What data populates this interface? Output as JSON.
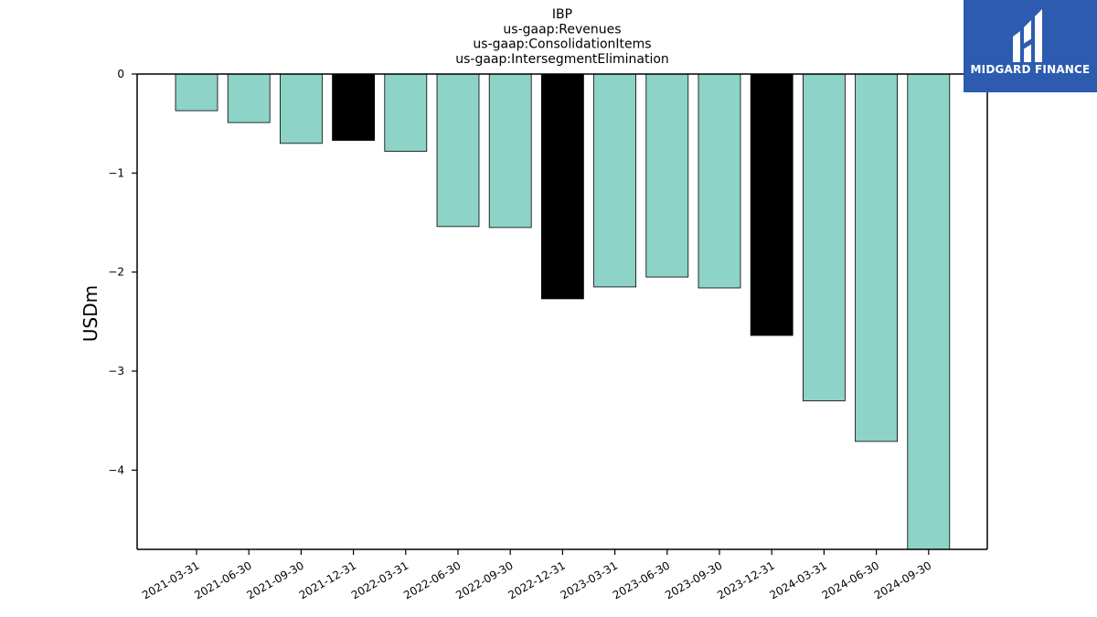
{
  "brand": {
    "name": "MIDGARD FINANCE",
    "background": "#2c5bb0"
  },
  "chart_data": {
    "type": "bar",
    "title_lines": [
      "IBP",
      "us-gaap:Revenues",
      "us-gaap:ConsolidationItems",
      "us-gaap:IntersegmentElimination"
    ],
    "xlabel": "",
    "ylabel": "USDm",
    "ylim": [
      -4.8,
      0
    ],
    "yticks": [
      0,
      -1,
      -2,
      -3,
      -4
    ],
    "ytick_labels": [
      "0",
      "−1",
      "−2",
      "−3",
      "−4"
    ],
    "grid": false,
    "categories": [
      "2021-03-31",
      "2021-06-30",
      "2021-09-30",
      "2021-12-31",
      "2022-03-31",
      "2022-06-30",
      "2022-09-30",
      "2022-12-31",
      "2023-03-31",
      "2023-06-30",
      "2023-09-30",
      "2023-12-31",
      "2024-03-31",
      "2024-06-30",
      "2024-09-30"
    ],
    "values": [
      -0.37,
      -0.49,
      -0.7,
      -0.67,
      -0.78,
      -1.54,
      -1.55,
      -2.27,
      -2.15,
      -2.05,
      -2.16,
      -2.64,
      -3.3,
      -3.71,
      -4.8
    ],
    "colors": [
      "#8dd3c7",
      "#8dd3c7",
      "#8dd3c7",
      "#000000",
      "#8dd3c7",
      "#8dd3c7",
      "#8dd3c7",
      "#000000",
      "#8dd3c7",
      "#8dd3c7",
      "#8dd3c7",
      "#000000",
      "#8dd3c7",
      "#8dd3c7",
      "#8dd3c7"
    ]
  }
}
